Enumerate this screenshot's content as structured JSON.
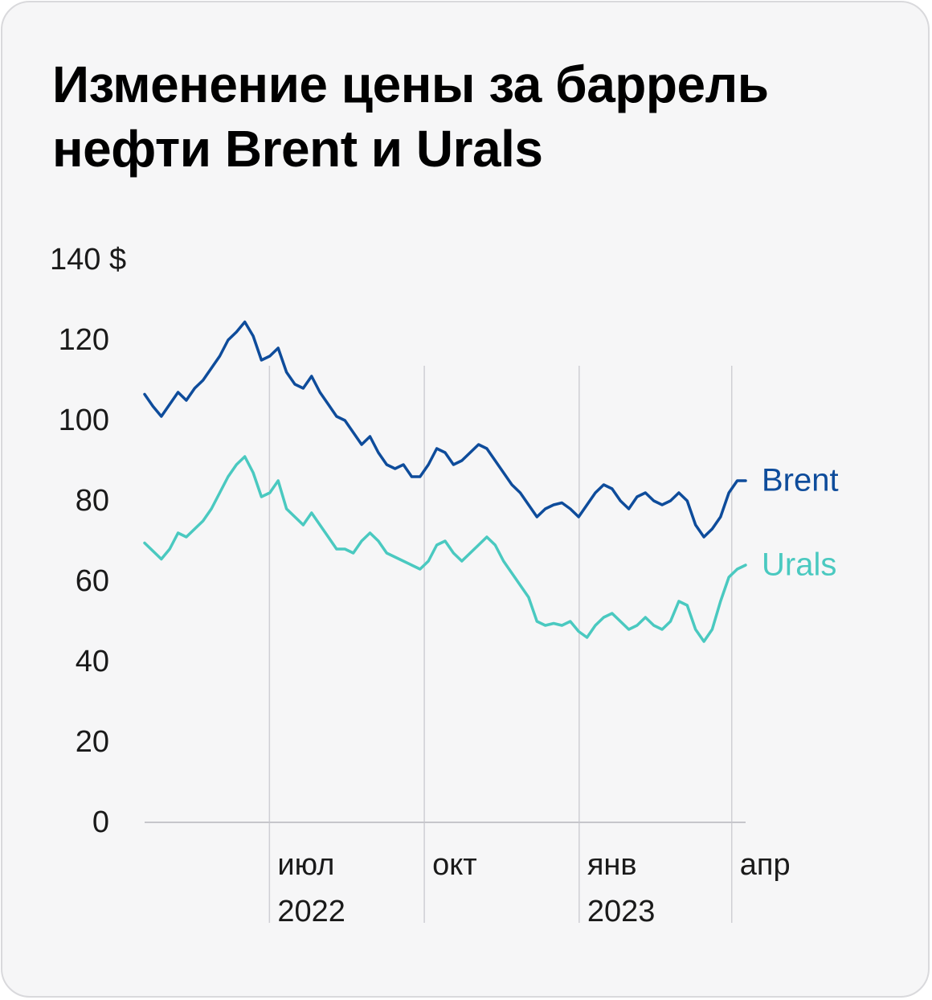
{
  "chart_data": {
    "type": "line",
    "title": "Изменение цены за баррель нефти Brent и Urals",
    "ylabel": "",
    "xlabel": "",
    "ylim": [
      0,
      140
    ],
    "y_ticks": [
      0,
      20,
      40,
      60,
      80,
      100,
      120,
      140
    ],
    "y_tick_labels": [
      "0",
      "20",
      "40",
      "60",
      "80",
      "100",
      "120",
      "140 $"
    ],
    "x_range_weeks": [
      0,
      52
    ],
    "x_ticks": [
      {
        "week": 10.8,
        "month": "июл",
        "year": "2022"
      },
      {
        "week": 24.2,
        "month": "окт",
        "year": ""
      },
      {
        "week": 37.6,
        "month": "янв",
        "year": "2023"
      },
      {
        "week": 50.8,
        "month": "апр",
        "year": ""
      }
    ],
    "colors": {
      "brent": "#0e4c9b",
      "urals": "#4ac9c0",
      "grid": "#cfcfd4",
      "axis": "#c6c6cb",
      "text": "#1a1a1a"
    },
    "series": [
      {
        "name": "Brent",
        "label": "Brent",
        "values": [
          106.5,
          103.5,
          101,
          104,
          107,
          105,
          108,
          110,
          113,
          116,
          120,
          122,
          124.5,
          121,
          115,
          116,
          118,
          112,
          109,
          108,
          111,
          107,
          104,
          101,
          100,
          97,
          94,
          96,
          92,
          89,
          88,
          89,
          86,
          86,
          89,
          93,
          92,
          89,
          90,
          92,
          94,
          93,
          90,
          87,
          84,
          82,
          79,
          76,
          78,
          79,
          79.5,
          78,
          76,
          79,
          82,
          84,
          83,
          80,
          78,
          81,
          82,
          80,
          79,
          80,
          82,
          80,
          74,
          71,
          73,
          76,
          82,
          85,
          85
        ]
      },
      {
        "name": "Urals",
        "label": "Urals",
        "values": [
          69.5,
          67.5,
          65.5,
          68,
          72,
          71,
          73,
          75,
          78,
          82,
          86,
          89,
          91,
          87,
          81,
          82,
          85,
          78,
          76,
          74,
          77,
          74,
          71,
          68,
          68,
          67,
          70,
          72,
          70,
          67,
          66,
          65,
          64,
          63,
          65,
          69,
          70,
          67,
          65,
          67,
          69,
          71,
          69,
          65,
          62,
          59,
          56,
          50,
          49,
          49.5,
          49,
          50,
          47.5,
          46,
          49,
          51,
          52,
          50,
          48,
          49,
          51,
          49,
          48,
          50,
          55,
          54,
          48,
          45,
          48,
          55,
          61,
          63,
          64
        ]
      }
    ]
  }
}
